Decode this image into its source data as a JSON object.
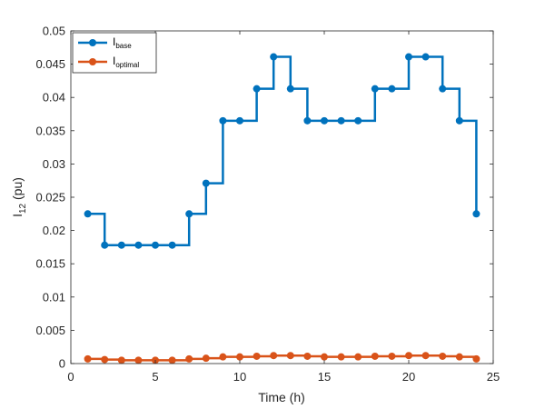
{
  "chart_data": {
    "type": "line",
    "step": true,
    "xlabel": "Time (h)",
    "ylabel": {
      "main": "I",
      "sub": "12",
      "rest": " (pu)"
    },
    "xlim": [
      0,
      25
    ],
    "ylim": [
      0,
      0.05
    ],
    "xticks": [
      0,
      5,
      10,
      15,
      20,
      25
    ],
    "xtick_labels": [
      "0",
      "5",
      "10",
      "15",
      "20",
      "25"
    ],
    "yticks": [
      0,
      0.005,
      0.01,
      0.015,
      0.02,
      0.025,
      0.03,
      0.035,
      0.04,
      0.045,
      0.05
    ],
    "ytick_labels": [
      "0",
      "0.005",
      "0.01",
      "0.015",
      "0.02",
      "0.025",
      "0.03",
      "0.035",
      "0.04",
      "0.045",
      "0.05"
    ],
    "grid": false,
    "legend_position": "top-left",
    "x": [
      1,
      2,
      3,
      4,
      5,
      6,
      7,
      8,
      9,
      10,
      11,
      12,
      13,
      14,
      15,
      16,
      17,
      18,
      19,
      20,
      21,
      22,
      23,
      24
    ],
    "series": [
      {
        "name": "I",
        "name_sub": "base",
        "color": "#0072BD",
        "values": [
          0.0225,
          0.0178,
          0.0178,
          0.0178,
          0.0178,
          0.0178,
          0.0225,
          0.0271,
          0.0365,
          0.0365,
          0.0413,
          0.0461,
          0.0413,
          0.0365,
          0.0365,
          0.0365,
          0.0365,
          0.0413,
          0.0413,
          0.0461,
          0.0461,
          0.0413,
          0.0365,
          0.0225
        ]
      },
      {
        "name": "I",
        "name_sub": "optimal",
        "color": "#D95319",
        "values": [
          0.0007,
          0.0006,
          0.0005,
          0.0005,
          0.0005,
          0.0005,
          0.0007,
          0.0008,
          0.001,
          0.001,
          0.0011,
          0.0012,
          0.0012,
          0.0011,
          0.001,
          0.001,
          0.001,
          0.0011,
          0.0011,
          0.0012,
          0.0012,
          0.0011,
          0.001,
          0.0007
        ]
      }
    ]
  }
}
